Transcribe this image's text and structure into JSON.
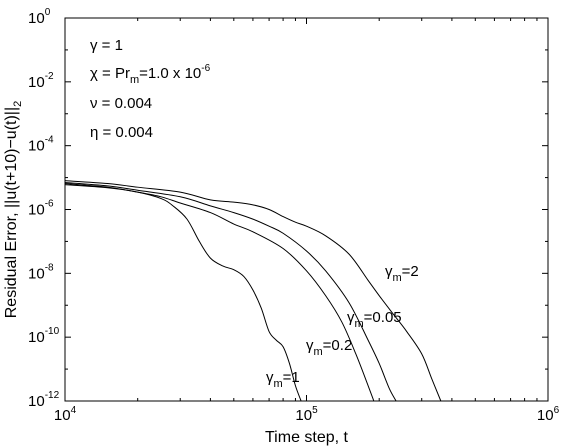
{
  "chart_data": {
    "type": "line",
    "title": "",
    "xlabel": "Time step, t",
    "ylabel": "Residual Error, ||u(t+10)−u(t)||",
    "ylabel_subscript": "2",
    "xscale": "log",
    "yscale": "log",
    "xlim": [
      10000,
      1000000
    ],
    "ylim": [
      1e-12,
      1
    ],
    "grid": false,
    "x_ticks": [
      {
        "base": "10",
        "exp": "4"
      },
      {
        "base": "10",
        "exp": "5"
      },
      {
        "base": "10",
        "exp": "6"
      }
    ],
    "y_ticks": [
      {
        "base": "10",
        "exp": "0"
      },
      {
        "base": "10",
        "exp": "-2"
      },
      {
        "base": "10",
        "exp": "-4"
      },
      {
        "base": "10",
        "exp": "-6"
      },
      {
        "base": "10",
        "exp": "-8"
      },
      {
        "base": "10",
        "exp": "-10"
      },
      {
        "base": "10",
        "exp": "-12"
      }
    ],
    "annotations": [
      {
        "text": "γ = 1"
      },
      {
        "pre": "χ = Pr",
        "sub": "m",
        "post": "=1.0 x 10",
        "sup": "-6"
      },
      {
        "text": "ν = 0.004"
      },
      {
        "text": "η = 0.004"
      }
    ],
    "series": [
      {
        "label_sym": "γ",
        "label_sub": "m",
        "label_val": "=2",
        "x": [
          10000,
          15000,
          20000,
          30000,
          40000,
          50000,
          60000,
          70000,
          80000,
          90000,
          100000,
          120000,
          150000,
          180000,
          200000,
          230000,
          260000,
          300000,
          330000,
          360000
        ],
        "y": [
          8e-06,
          6.5e-06,
          5e-06,
          3.5e-06,
          2e-06,
          1.7e-06,
          1.4e-06,
          1e-06,
          6e-07,
          4e-07,
          3e-07,
          1.5e-07,
          4e-08,
          6e-09,
          2e-09,
          5e-10,
          1.5e-10,
          3e-11,
          5e-12,
          1e-12
        ]
      },
      {
        "label_sym": "γ",
        "label_sub": "m",
        "label_val": "=0.05",
        "x": [
          10000,
          15000,
          20000,
          30000,
          40000,
          50000,
          60000,
          70000,
          80000,
          100000,
          120000,
          150000,
          180000,
          200000,
          220000,
          235000
        ],
        "y": [
          7e-06,
          5.5e-06,
          4e-06,
          2.5e-06,
          1.3e-06,
          8e-07,
          5e-07,
          3e-07,
          1.8e-07,
          5e-08,
          1.2e-08,
          1.2e-09,
          8e-11,
          1.5e-11,
          2.5e-12,
          1e-12
        ]
      },
      {
        "label_sym": "γ",
        "label_sub": "m",
        "label_val": "=0.2",
        "x": [
          10000,
          15000,
          20000,
          25000,
          30000,
          40000,
          50000,
          60000,
          80000,
          100000,
          120000,
          140000,
          160000,
          180000,
          190000
        ],
        "y": [
          6.5e-06,
          5e-06,
          3.5e-06,
          2.5e-06,
          1.6e-06,
          8e-07,
          3.5e-07,
          2e-07,
          6e-08,
          1.2e-08,
          2e-09,
          3e-10,
          3e-11,
          3e-12,
          1e-12
        ]
      },
      {
        "label_sym": "γ",
        "label_sub": "m",
        "label_val": "=1",
        "x": [
          10000,
          15000,
          20000,
          25000,
          28000,
          32000,
          36000,
          40000,
          45000,
          50000,
          55000,
          60000,
          65000,
          70000,
          75000,
          80000,
          85000,
          90000,
          95000
        ],
        "y": [
          6e-06,
          4.8e-06,
          3.5e-06,
          2.2e-06,
          1.3e-06,
          5e-07,
          1e-07,
          3e-08,
          1.7e-08,
          1.3e-08,
          8e-09,
          3e-09,
          8e-10,
          1.5e-10,
          8e-11,
          5e-11,
          1.5e-11,
          3e-12,
          1e-12
        ]
      }
    ]
  }
}
